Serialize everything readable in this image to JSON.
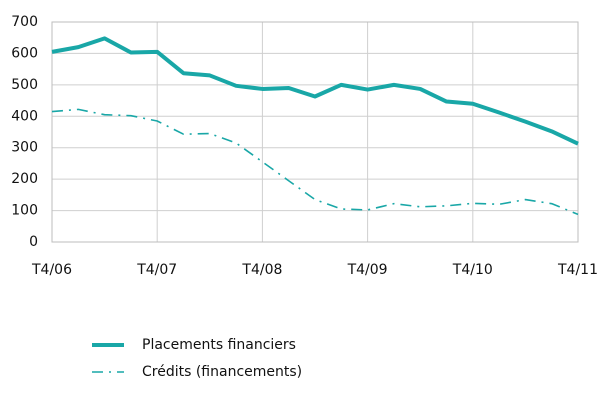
{
  "chart_data": {
    "type": "line",
    "categories": [
      "T4/06",
      null,
      null,
      null,
      "T4/07",
      null,
      null,
      null,
      "T4/08",
      null,
      null,
      null,
      "T4/09",
      null,
      null,
      null,
      "T4/10",
      null,
      null,
      null,
      "T4/11"
    ],
    "series": [
      {
        "name": "Placements financiers",
        "color": "#19a7a7",
        "style": "solid",
        "values": [
          605,
          620,
          648,
          603,
          605,
          537,
          530,
          497,
          487,
          490,
          463,
          500,
          485,
          500,
          487,
          447,
          440,
          412,
          383,
          352,
          313
        ]
      },
      {
        "name": "Crédits (financements)",
        "color": "#19a7a7",
        "style": "dashdot",
        "values": [
          415,
          422,
          405,
          402,
          385,
          343,
          345,
          315,
          255,
          195,
          135,
          105,
          102,
          122,
          112,
          115,
          123,
          120,
          135,
          122,
          88
        ]
      }
    ],
    "ylim": [
      0,
      700
    ],
    "yticks": [
      0,
      100,
      200,
      300,
      400,
      500,
      600,
      700
    ],
    "grid": true
  }
}
